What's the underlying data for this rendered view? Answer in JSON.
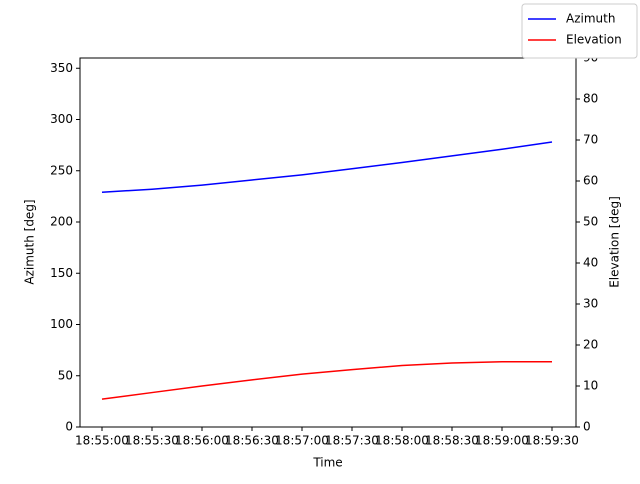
{
  "chart_data": {
    "type": "line",
    "x_label": "Time",
    "y_label": "Azimuth [deg]",
    "y2_label": "Elevation [deg]",
    "categories": [
      "18:55:00",
      "18:55:30",
      "18:56:00",
      "18:56:30",
      "18:57:00",
      "18:57:30",
      "18:58:00",
      "18:58:30",
      "18:59:00",
      "18:59:30"
    ],
    "series": [
      {
        "name": "Azimuth",
        "color": "#0000ff",
        "values": [
          229,
          232,
          236,
          241,
          246,
          252,
          258,
          264.5,
          271,
          278
        ]
      },
      {
        "name": "Elevation",
        "color": "#ff0000",
        "axis": "y2",
        "values": [
          6.8,
          8.4,
          10.0,
          11.5,
          12.9,
          14.0,
          15.0,
          15.6,
          15.9,
          15.9
        ]
      }
    ],
    "ylim": [
      0,
      360
    ],
    "yticks": [
      0,
      50,
      100,
      150,
      200,
      250,
      300,
      350
    ],
    "y2lim": [
      0,
      90
    ],
    "y2ticks": [
      0,
      10,
      20,
      30,
      40,
      50,
      60,
      70,
      80,
      90
    ],
    "legend": "upper right",
    "grid": false
  }
}
